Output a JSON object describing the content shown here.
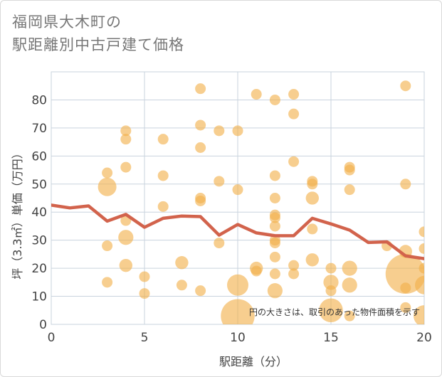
{
  "title_lines": [
    "福岡県大木町の",
    "駅距離別中古戸建て価格"
  ],
  "chart_data": {
    "type": "scatter",
    "xlabel": "駅距離（分）",
    "ylabel": "坪（3.3㎡）単価（万円）",
    "xlim": [
      0,
      20
    ],
    "ylim": [
      0,
      90
    ],
    "x_ticks": [
      0,
      5,
      10,
      15,
      20
    ],
    "y_ticks": [
      0,
      10,
      20,
      30,
      40,
      50,
      60,
      70,
      80
    ],
    "grid": true,
    "note": "円の大きさは、取引のあった物件面積を示す",
    "colors": {
      "bubble": "#f2b04a",
      "line": "#d2634c",
      "grid": "#c9d3de"
    },
    "bubbles": [
      {
        "x": 3,
        "y": 54,
        "size": 1
      },
      {
        "x": 3,
        "y": 49,
        "size": 3
      },
      {
        "x": 3,
        "y": 28,
        "size": 1
      },
      {
        "x": 3,
        "y": 15,
        "size": 1
      },
      {
        "x": 4,
        "y": 69,
        "size": 1
      },
      {
        "x": 4,
        "y": 66,
        "size": 1
      },
      {
        "x": 4,
        "y": 56,
        "size": 1
      },
      {
        "x": 4,
        "y": 37,
        "size": 1
      },
      {
        "x": 4,
        "y": 31,
        "size": 2
      },
      {
        "x": 4,
        "y": 21,
        "size": 1.5
      },
      {
        "x": 5,
        "y": 17,
        "size": 1
      },
      {
        "x": 5,
        "y": 11,
        "size": 1
      },
      {
        "x": 6,
        "y": 66,
        "size": 1
      },
      {
        "x": 6,
        "y": 53,
        "size": 1
      },
      {
        "x": 6,
        "y": 42,
        "size": 1
      },
      {
        "x": 7,
        "y": 22,
        "size": 1.5
      },
      {
        "x": 7,
        "y": 14,
        "size": 1
      },
      {
        "x": 8,
        "y": 84,
        "size": 1
      },
      {
        "x": 8,
        "y": 71,
        "size": 1
      },
      {
        "x": 8,
        "y": 63,
        "size": 1
      },
      {
        "x": 8,
        "y": 45,
        "size": 1
      },
      {
        "x": 8,
        "y": 44,
        "size": 1
      },
      {
        "x": 8,
        "y": 12,
        "size": 1
      },
      {
        "x": 9,
        "y": 69,
        "size": 1
      },
      {
        "x": 9,
        "y": 51,
        "size": 1
      },
      {
        "x": 9,
        "y": 29,
        "size": 1
      },
      {
        "x": 10,
        "y": 69,
        "size": 1
      },
      {
        "x": 10,
        "y": 48,
        "size": 1
      },
      {
        "x": 10,
        "y": 14,
        "size": 4
      },
      {
        "x": 10,
        "y": 3,
        "size": 10
      },
      {
        "x": 11,
        "y": 82,
        "size": 1
      },
      {
        "x": 11,
        "y": 20,
        "size": 1.5
      },
      {
        "x": 11,
        "y": 19,
        "size": 1
      },
      {
        "x": 12,
        "y": 80,
        "size": 1
      },
      {
        "x": 12,
        "y": 53,
        "size": 1
      },
      {
        "x": 12,
        "y": 45,
        "size": 1
      },
      {
        "x": 12,
        "y": 39,
        "size": 1
      },
      {
        "x": 12,
        "y": 38,
        "size": 1
      },
      {
        "x": 12,
        "y": 35,
        "size": 1
      },
      {
        "x": 12,
        "y": 30,
        "size": 1
      },
      {
        "x": 12,
        "y": 29,
        "size": 1
      },
      {
        "x": 12,
        "y": 24,
        "size": 1
      },
      {
        "x": 12,
        "y": 18,
        "size": 1
      },
      {
        "x": 12,
        "y": 12,
        "size": 2
      },
      {
        "x": 13,
        "y": 82,
        "size": 1
      },
      {
        "x": 13,
        "y": 75,
        "size": 1
      },
      {
        "x": 13,
        "y": 58,
        "size": 1
      },
      {
        "x": 13,
        "y": 21,
        "size": 1
      },
      {
        "x": 13,
        "y": 18,
        "size": 1
      },
      {
        "x": 14,
        "y": 51,
        "size": 1
      },
      {
        "x": 14,
        "y": 50,
        "size": 1
      },
      {
        "x": 14,
        "y": 45,
        "size": 1.5
      },
      {
        "x": 14,
        "y": 34,
        "size": 1
      },
      {
        "x": 14,
        "y": 23,
        "size": 1.5
      },
      {
        "x": 15,
        "y": 20,
        "size": 1
      },
      {
        "x": 15,
        "y": 15,
        "size": 2
      },
      {
        "x": 15,
        "y": 12,
        "size": 1
      },
      {
        "x": 15,
        "y": 5,
        "size": 5
      },
      {
        "x": 16,
        "y": 56,
        "size": 1
      },
      {
        "x": 16,
        "y": 55,
        "size": 1
      },
      {
        "x": 16,
        "y": 48,
        "size": 1
      },
      {
        "x": 16,
        "y": 20,
        "size": 2
      },
      {
        "x": 16,
        "y": 14,
        "size": 2
      },
      {
        "x": 16,
        "y": 3,
        "size": 1
      },
      {
        "x": 18,
        "y": 28,
        "size": 1
      },
      {
        "x": 19,
        "y": 85,
        "size": 1
      },
      {
        "x": 19,
        "y": 50,
        "size": 1
      },
      {
        "x": 19,
        "y": 26,
        "size": 1.5
      },
      {
        "x": 19,
        "y": 18,
        "size": 14
      },
      {
        "x": 19,
        "y": 13,
        "size": 1
      },
      {
        "x": 19,
        "y": 6,
        "size": 1
      },
      {
        "x": 20,
        "y": 33,
        "size": 1
      },
      {
        "x": 20,
        "y": 27,
        "size": 1
      },
      {
        "x": 20,
        "y": 20,
        "size": 1
      },
      {
        "x": 20,
        "y": 14,
        "size": 3
      },
      {
        "x": 20,
        "y": 3,
        "size": 4
      }
    ],
    "series": [
      {
        "x": [
          0,
          1,
          2,
          3,
          4,
          5,
          6,
          7,
          8,
          9,
          10,
          11,
          12,
          13,
          14,
          15,
          16,
          17,
          18,
          19,
          20
        ],
        "values": [
          42.5,
          41.5,
          42.2,
          36.8,
          39.2,
          34.6,
          37.8,
          38.6,
          38.4,
          31.8,
          35.6,
          32.6,
          31.6,
          31.6,
          37.8,
          35.8,
          33.6,
          29.2,
          29.4,
          24.4,
          23.4
        ]
      }
    ]
  }
}
